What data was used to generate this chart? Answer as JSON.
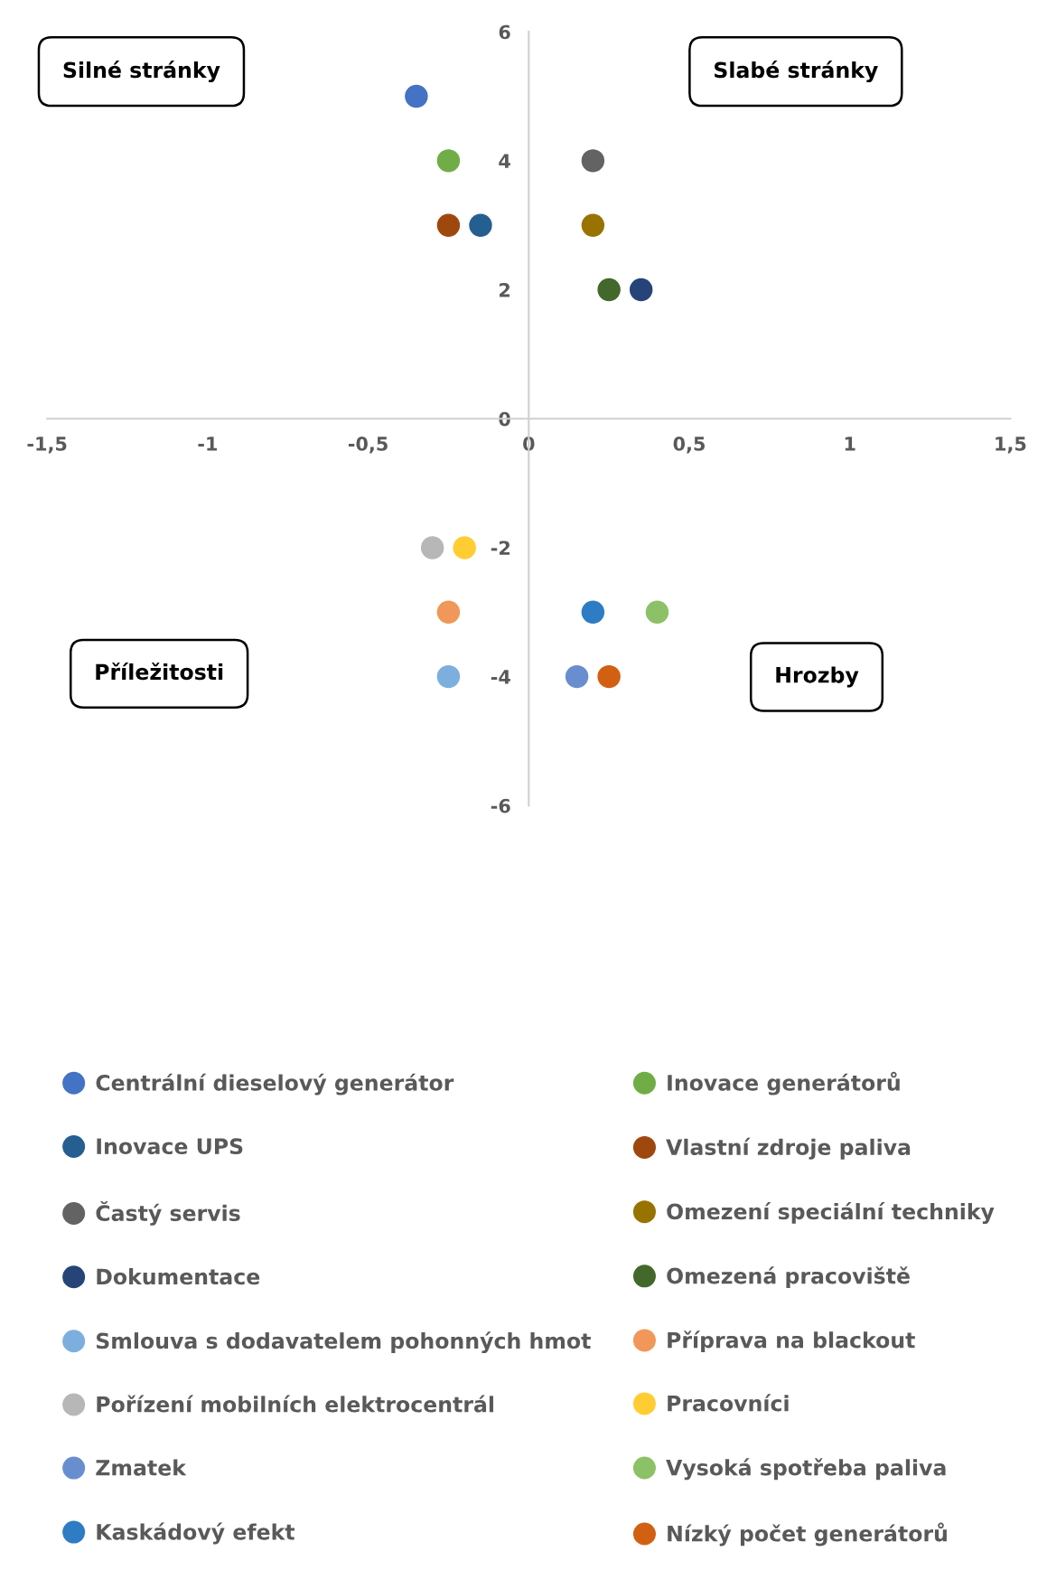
{
  "chart_data": {
    "type": "scatter",
    "xlim": [
      -1.5,
      1.5
    ],
    "xticks": [
      {
        "value": -1.5,
        "label": "-1,5"
      },
      -1,
      {
        "value": -0.5,
        "label": "-0,5"
      },
      0,
      {
        "value": 0.5,
        "label": "0,5"
      },
      1,
      {
        "value": 1.5,
        "label": "1,5"
      }
    ],
    "ylim": [
      -6,
      6
    ],
    "yticks": [
      -6,
      -4,
      -2,
      0,
      2,
      4,
      6
    ],
    "grid": false,
    "legend": "bottom",
    "marker": "circle",
    "annotations": [
      "Silné stránky",
      "Slabé stránky",
      "Příležitosti",
      "Hrozby"
    ],
    "series": [
      {
        "name": "Centrální dieselový generátor",
        "color": "#4472c4",
        "x": [
          -0.35
        ],
        "values": [
          5
        ]
      },
      {
        "name": "Inovace generátorů",
        "color": "#70ad47",
        "x": [
          -0.25
        ],
        "values": [
          4
        ]
      },
      {
        "name": "Inovace UPS",
        "color": "#255e91",
        "x": [
          -0.15
        ],
        "values": [
          3
        ]
      },
      {
        "name": "Vlastní zdroje paliva",
        "color": "#9e480e",
        "x": [
          -0.25
        ],
        "values": [
          3
        ]
      },
      {
        "name": "Častý servis",
        "color": "#636363",
        "x": [
          0.2
        ],
        "values": [
          4
        ]
      },
      {
        "name": "Omezení speciální techniky",
        "color": "#997300",
        "x": [
          0.2
        ],
        "values": [
          3
        ]
      },
      {
        "name": "Dokumentace",
        "color": "#264478",
        "x": [
          0.35
        ],
        "values": [
          2
        ]
      },
      {
        "name": "Omezená pracoviště",
        "color": "#43682b",
        "x": [
          0.25
        ],
        "values": [
          2
        ]
      },
      {
        "name": "Smlouva s dodavatelem pohonných hmot",
        "color": "#7cafdd",
        "x": [
          -0.25
        ],
        "values": [
          -4
        ]
      },
      {
        "name": "Příprava na blackout",
        "color": "#f1975a",
        "x": [
          -0.25
        ],
        "values": [
          -3
        ]
      },
      {
        "name": "Pořízení mobilních elektrocentrál",
        "color": "#b7b7b7",
        "x": [
          -0.3
        ],
        "values": [
          -2
        ]
      },
      {
        "name": "Pracovníci",
        "color": "#ffcd33",
        "x": [
          -0.2
        ],
        "values": [
          -2
        ]
      },
      {
        "name": "Zmatek",
        "color": "#698ed0",
        "x": [
          0.15
        ],
        "values": [
          -4
        ]
      },
      {
        "name": "Vysoká spotřeba paliva",
        "color": "#8cc168",
        "x": [
          0.4
        ],
        "values": [
          -3
        ]
      },
      {
        "name": "Kaskádový efekt",
        "color": "#2e7cc4",
        "x": [
          0.2
        ],
        "values": [
          -3
        ]
      },
      {
        "name": "Nízký počet generátorů",
        "color": "#d26012",
        "x": [
          0.25
        ],
        "values": [
          -4
        ]
      }
    ]
  }
}
